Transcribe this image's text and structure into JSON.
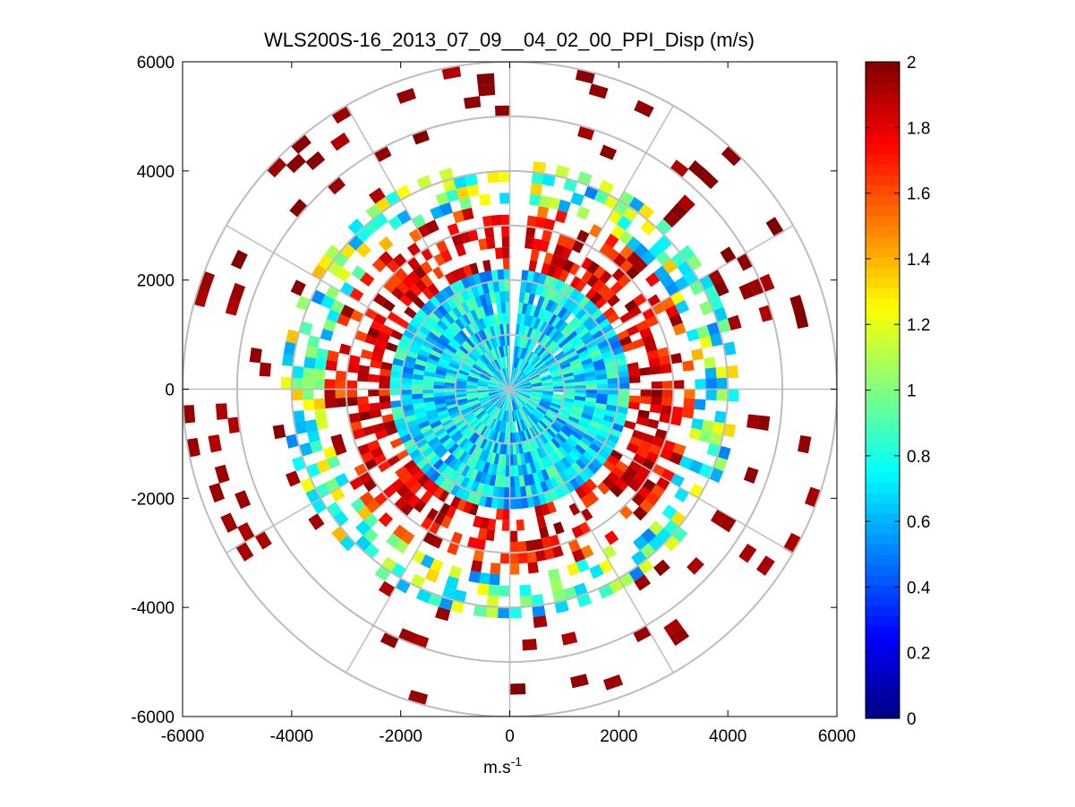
{
  "chart_data": {
    "type": "heatmap",
    "subtype": "polar-ppi",
    "title": "WLS200S-16_2013_07_09__04_02_00_PPI_Disp (m/s)",
    "xlabel_base": "m.s",
    "xlabel_sup": "-1",
    "ylabel": "",
    "xlim": [
      -6000,
      6000
    ],
    "ylim": [
      -6000,
      6000
    ],
    "xticks": [
      -6000,
      -4000,
      -2000,
      0,
      2000,
      4000,
      6000
    ],
    "yticks": [
      -6000,
      -4000,
      -2000,
      0,
      2000,
      4000,
      6000
    ],
    "xtick_labels": [
      "-6000",
      "-4000",
      "-2000",
      "0",
      "2000",
      "4000",
      "6000"
    ],
    "ytick_labels": [
      "6000",
      "4000",
      "2000",
      "0",
      "-2000",
      "-4000",
      "-6000"
    ],
    "polar_grid_rings_m": [
      1000,
      2000,
      3000,
      4000,
      5000,
      6000
    ],
    "polar_grid_spoke_step_deg": 30,
    "range_gate_m": 200,
    "azimuth_step_deg": 3,
    "missing_sector_deg": [
      -2,
      5
    ],
    "colorbar": {
      "colormap": "jet",
      "range": [
        0,
        2
      ],
      "ticks": [
        0,
        0.2,
        0.4,
        0.6,
        0.8,
        1,
        1.2,
        1.4,
        1.6,
        1.8,
        2
      ],
      "tick_labels": [
        "0",
        "0.2",
        "0.4",
        "0.6",
        "0.8",
        "1",
        "1.2",
        "1.4",
        "1.6",
        "1.8",
        "2"
      ]
    },
    "field_profile": [
      {
        "range_m": [
          0,
          2200
        ],
        "value_min": 0.45,
        "value_max": 0.95,
        "coverage": 0.98
      },
      {
        "range_m": [
          2200,
          3000
        ],
        "value_min": 1.6,
        "value_max": 2.0,
        "coverage": 0.6
      },
      {
        "range_m": [
          3000,
          3400
        ],
        "value_min": 1.5,
        "value_max": 2.0,
        "coverage": 0.45
      },
      {
        "range_m": [
          3400,
          4200
        ],
        "value_min": 0.5,
        "value_max": 1.4,
        "coverage": 0.55
      },
      {
        "range_m": [
          4200,
          6000
        ],
        "value_min": 1.9,
        "value_max": 2.0,
        "coverage": 0.07
      }
    ]
  }
}
